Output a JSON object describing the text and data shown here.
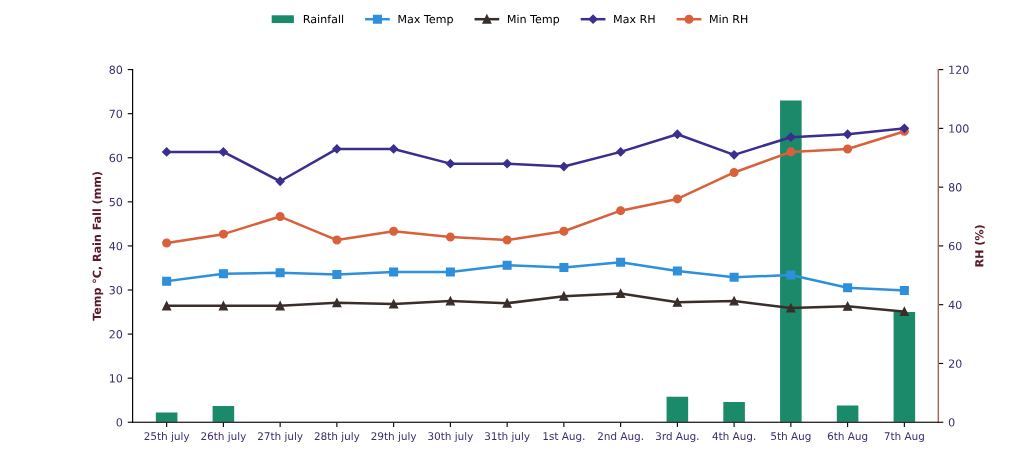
{
  "chart_data": {
    "type": "line",
    "ylabel": "Temp °C, Rain Fall (mm)",
    "y2label": "RH (%)",
    "categories": [
      "25th july",
      "26th july",
      "27th july",
      "28th july",
      "29th july",
      "30th july",
      "31th july",
      "1st Aug.",
      "2nd Aug.",
      "3rd Aug.",
      "4th Aug.",
      "5th Aug",
      "6th Aug",
      "7th Aug"
    ],
    "ylim": [
      0,
      80
    ],
    "yticks": [
      0,
      10,
      20,
      30,
      40,
      50,
      60,
      70,
      80
    ],
    "y2lim": [
      0,
      120
    ],
    "y2ticks": [
      0,
      20,
      40,
      60,
      80,
      100,
      120
    ],
    "grid": false,
    "legend": "top",
    "series": [
      {
        "name": "Rainfall",
        "type": "bar",
        "color": "#1a8a6a",
        "values": [
          2.2,
          3.7,
          null,
          null,
          null,
          null,
          null,
          null,
          null,
          5.8,
          4.6,
          73,
          3.8,
          25
        ]
      },
      {
        "name": "Max Temp",
        "marker": "square",
        "color": "#2e8fdc",
        "values": [
          32,
          33.7,
          33.9,
          33.5,
          34.1,
          34.1,
          35.6,
          35.1,
          36.3,
          34.3,
          32.9,
          33.4,
          30.5,
          29.9
        ]
      },
      {
        "name": "Min Temp",
        "marker": "triangle",
        "color": "#3a2e2a",
        "values": [
          26.4,
          26.4,
          26.4,
          27.1,
          26.8,
          27.5,
          27.0,
          28.6,
          29.2,
          27.2,
          27.5,
          25.9,
          26.3,
          25.1
        ]
      },
      {
        "name": "Max RH",
        "marker": "diamond",
        "axis": "y2",
        "color": "#3a2f8f",
        "values": [
          92,
          92,
          82,
          93,
          93,
          88,
          88,
          87,
          92,
          98,
          91,
          97,
          98,
          100
        ]
      },
      {
        "name": "Min RH",
        "marker": "circle",
        "axis": "y2",
        "color": "#d9603a",
        "values": [
          61,
          64,
          70,
          62,
          65,
          63,
          62,
          65,
          72,
          76,
          85,
          92,
          93,
          99
        ]
      }
    ]
  }
}
